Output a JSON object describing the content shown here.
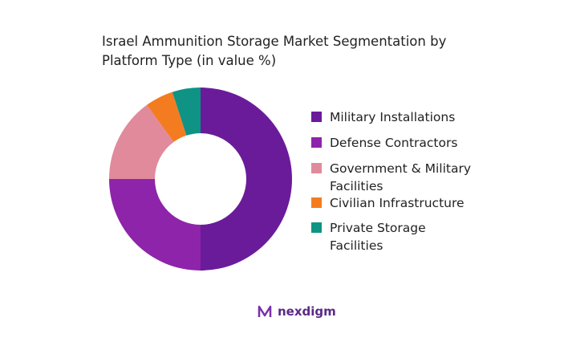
{
  "chart_data": {
    "type": "donut",
    "title": "Israel Ammunition Storage Market Segmentation by Platform Type (in value %)",
    "categories": [
      "Military Installations",
      "Defense Contractors",
      "Government & Military Facilities",
      "Civilian Infrastructure",
      "Private Storage Facilities"
    ],
    "values": [
      50,
      25,
      15,
      5,
      5
    ],
    "colors": [
      "#6a1b9a",
      "#8e24aa",
      "#e08a9b",
      "#f47c20",
      "#0e9384"
    ],
    "legend": "right"
  },
  "logo_text": "nexdigm"
}
